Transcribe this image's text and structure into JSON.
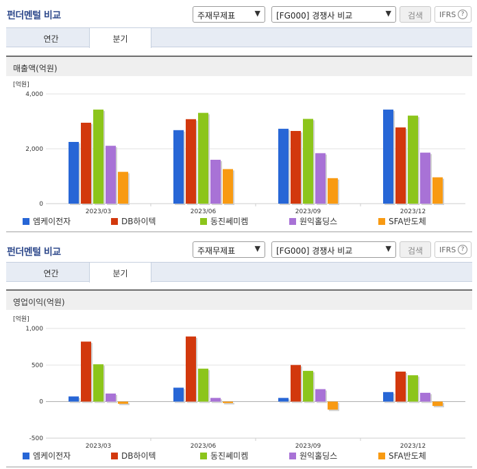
{
  "colors": {
    "series": [
      "#2766d6",
      "#d2380d",
      "#8cc51b",
      "#a872d6",
      "#f89a12"
    ],
    "accent_title": "#2f4a8c"
  },
  "toolbar": {
    "title": "펀더멘털 비교",
    "select_type": "주재무제표",
    "select_compare": "[FG000] 경쟁사 비교",
    "search_label": "검색",
    "ifrs_label": "IFRS",
    "help_icon": "?"
  },
  "tabs": [
    {
      "label": "연간",
      "active": false
    },
    {
      "label": "분기",
      "active": true
    }
  ],
  "legend": [
    "엠케이전자",
    "DB하이텍",
    "동진쎄미켐",
    "원익홀딩스",
    "SFA반도체"
  ],
  "charts": [
    {
      "metric_title": "매출액(억원)",
      "unit": "[억원]",
      "chart_data": {
        "type": "bar",
        "categories": [
          "2023/03",
          "2023/06",
          "2023/09",
          "2023/12"
        ],
        "ylim": [
          0,
          4000
        ],
        "yticks": [
          "4,000",
          "2,000",
          "0"
        ],
        "ytick_values": [
          4000,
          2000,
          0
        ],
        "series": [
          {
            "name": "엠케이전자",
            "values": [
              2250,
              2680,
              2730,
              3430
            ]
          },
          {
            "name": "DB하이텍",
            "values": [
              2950,
              3080,
              2650,
              2780
            ]
          },
          {
            "name": "동진쎄미켐",
            "values": [
              3430,
              3310,
              3090,
              3210
            ]
          },
          {
            "name": "원익홀딩스",
            "values": [
              2110,
              1600,
              1840,
              1860
            ]
          },
          {
            "name": "SFA반도체",
            "values": [
              1160,
              1260,
              930,
              960
            ]
          }
        ]
      }
    },
    {
      "metric_title": "영업이익(억원)",
      "unit": "[억원]",
      "chart_data": {
        "type": "bar",
        "categories": [
          "2023/03",
          "2023/06",
          "2023/09",
          "2023/12"
        ],
        "ylim": [
          -500,
          1000
        ],
        "yticks": [
          "1,000",
          "500",
          "0",
          "-500"
        ],
        "ytick_values": [
          1000,
          500,
          0,
          -500
        ],
        "series": [
          {
            "name": "엠케이전자",
            "values": [
              70,
              190,
              50,
              130
            ]
          },
          {
            "name": "DB하이텍",
            "values": [
              820,
              890,
              500,
              410
            ]
          },
          {
            "name": "동진쎄미켐",
            "values": [
              510,
              450,
              420,
              360
            ]
          },
          {
            "name": "원익홀딩스",
            "values": [
              110,
              50,
              170,
              120
            ]
          },
          {
            "name": "SFA반도체",
            "values": [
              -30,
              -20,
              -110,
              -60
            ]
          }
        ]
      }
    }
  ]
}
